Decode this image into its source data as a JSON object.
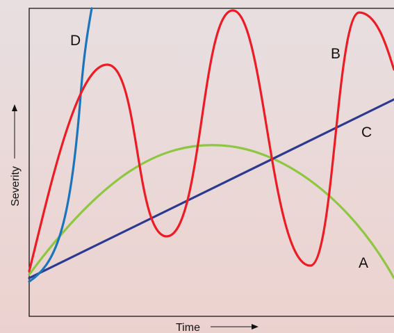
{
  "axes": {
    "y_label": "Severity",
    "x_label": "Time"
  },
  "curves": {
    "a": {
      "label": "A"
    },
    "b": {
      "label": "B"
    },
    "c": {
      "label": "C"
    },
    "d": {
      "label": "D"
    }
  }
}
